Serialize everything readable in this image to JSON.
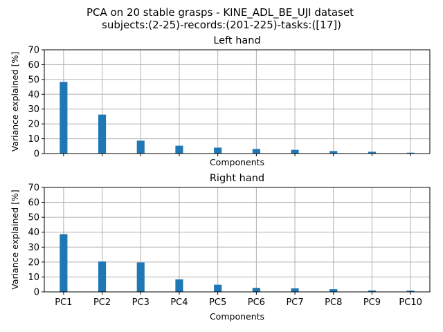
{
  "figure": {
    "title_line1": "PCA on 20 stable grasps - KINE_ADL_BE_UJI dataset",
    "title_line2": "subjects:(2-25)-records:(201-225)-tasks:([17])"
  },
  "colors": {
    "bar": "#1f77b4",
    "grid": "#b0b0b0",
    "axis": "#000000"
  },
  "chart_data": [
    {
      "type": "bar",
      "title": "Left hand",
      "xlabel": "Components",
      "ylabel": "Variance explained [%]",
      "ylim": [
        0,
        70
      ],
      "yticks": [
        0,
        10,
        20,
        30,
        40,
        50,
        60,
        70
      ],
      "grid": true,
      "show_xticklabels": false,
      "categories": [
        "PC1",
        "PC2",
        "PC3",
        "PC4",
        "PC5",
        "PC6",
        "PC7",
        "PC8",
        "PC9",
        "PC10"
      ],
      "values": [
        48.3,
        26.3,
        8.7,
        5.3,
        4.0,
        3.1,
        2.5,
        1.7,
        1.2,
        0.6
      ]
    },
    {
      "type": "bar",
      "title": "Right hand",
      "xlabel": "Components",
      "ylabel": "Variance explained [%]",
      "ylim": [
        0,
        70
      ],
      "yticks": [
        0,
        10,
        20,
        30,
        40,
        50,
        60,
        70
      ],
      "grid": true,
      "show_xticklabels": true,
      "categories": [
        "PC1",
        "PC2",
        "PC3",
        "PC4",
        "PC5",
        "PC6",
        "PC7",
        "PC8",
        "PC9",
        "PC10"
      ],
      "values": [
        38.7,
        20.4,
        19.7,
        8.4,
        4.8,
        2.7,
        2.4,
        1.8,
        0.9,
        0.8
      ]
    }
  ]
}
